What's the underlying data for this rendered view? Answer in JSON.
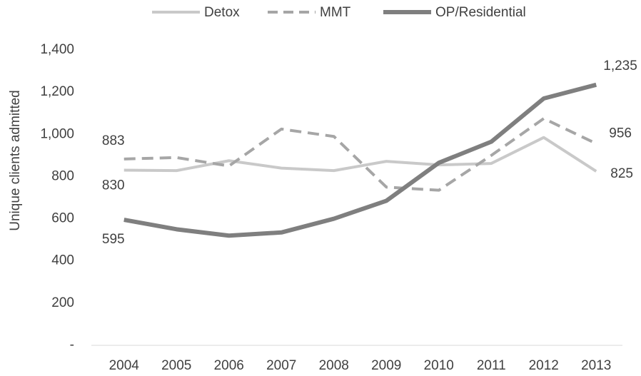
{
  "chart_data": {
    "type": "line",
    "y_label": "Unique clients admitted",
    "categories": [
      "2004",
      "2005",
      "2006",
      "2007",
      "2008",
      "2009",
      "2010",
      "2011",
      "2012",
      "2013"
    ],
    "series": [
      {
        "name": "Detox",
        "color": "#c9c9c9",
        "dash": false,
        "width": 4,
        "values": [
          830,
          828,
          875,
          840,
          828,
          872,
          855,
          862,
          985,
          825
        ],
        "value_labels": [
          "830",
          null,
          null,
          null,
          null,
          null,
          null,
          null,
          null,
          "825"
        ]
      },
      {
        "name": "MMT",
        "color": "#a6a6a6",
        "dash": true,
        "width": 4,
        "values": [
          883,
          890,
          850,
          1025,
          990,
          750,
          735,
          900,
          1075,
          956
        ],
        "value_labels": [
          "883",
          null,
          null,
          null,
          null,
          null,
          null,
          null,
          null,
          "956"
        ]
      },
      {
        "name": "OP/Residential",
        "color": "#7f7f7f",
        "dash": false,
        "width": 6,
        "values": [
          595,
          550,
          520,
          535,
          600,
          685,
          865,
          965,
          1170,
          1235
        ],
        "value_labels": [
          "595",
          null,
          null,
          null,
          null,
          null,
          null,
          null,
          null,
          "1,235"
        ]
      }
    ],
    "ylim": [
      0,
      1400
    ],
    "yticks": [
      {
        "value": 0,
        "label": "-"
      },
      200,
      400,
      600,
      800,
      {
        "value": 1000,
        "label": "1,000"
      },
      {
        "value": 1200,
        "label": "1,200"
      },
      {
        "value": 1400,
        "label": "1,400"
      }
    ],
    "grid": false,
    "legend": "top"
  }
}
